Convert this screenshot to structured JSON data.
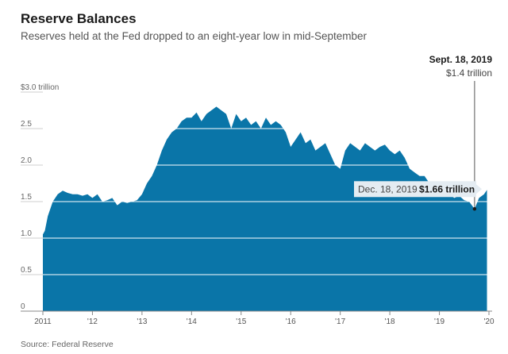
{
  "header": {
    "title": "Reserve Balances",
    "subtitle": "Reserves held at the Fed dropped to an eight-year low in mid-September"
  },
  "footer": {
    "source": "Source: Federal Reserve"
  },
  "colors": {
    "area": "#0a75a8",
    "grid": "#ffffff",
    "callout_bg": "#e4ecf2"
  },
  "chart_data": {
    "type": "area",
    "title": "Reserve Balances",
    "subtitle": "Reserves held at the Fed dropped to an eight-year low in mid-September",
    "ylabel": "",
    "xlabel": "",
    "ylim": [
      0,
      3.0
    ],
    "xlim": [
      2011.0,
      2020.0
    ],
    "yticks": [
      {
        "value": 0,
        "label": "0"
      },
      {
        "value": 0.5,
        "label": "0.5"
      },
      {
        "value": 1.0,
        "label": "1.0"
      },
      {
        "value": 1.5,
        "label": "1.5"
      },
      {
        "value": 2.0,
        "label": "2.0"
      },
      {
        "value": 2.5,
        "label": "2.5"
      },
      {
        "value": 3.0,
        "label": "$3.0 trillion"
      }
    ],
    "xticks": [
      {
        "value": 2011,
        "label": "2011"
      },
      {
        "value": 2012,
        "label": "'12"
      },
      {
        "value": 2013,
        "label": "'13"
      },
      {
        "value": 2014,
        "label": "'14"
      },
      {
        "value": 2015,
        "label": "'15"
      },
      {
        "value": 2016,
        "label": "'16"
      },
      {
        "value": 2017,
        "label": "'17"
      },
      {
        "value": 2018,
        "label": "'18"
      },
      {
        "value": 2019,
        "label": "'19"
      },
      {
        "value": 2020,
        "label": "'20"
      }
    ],
    "grid": true,
    "series": [
      {
        "x": [
          2011.0,
          2011.04,
          2011.1,
          2011.2,
          2011.3,
          2011.4,
          2011.5,
          2011.6,
          2011.7,
          2011.8,
          2011.9,
          2012.0,
          2012.1,
          2012.2,
          2012.3,
          2012.4,
          2012.5,
          2012.6,
          2012.7,
          2012.8,
          2012.9,
          2013.0,
          2013.1,
          2013.2,
          2013.3,
          2013.4,
          2013.5,
          2013.6,
          2013.7,
          2013.8,
          2013.9,
          2014.0,
          2014.1,
          2014.2,
          2014.3,
          2014.4,
          2014.5,
          2014.6,
          2014.7,
          2014.8,
          2014.9,
          2015.0,
          2015.1,
          2015.2,
          2015.3,
          2015.4,
          2015.5,
          2015.6,
          2015.7,
          2015.8,
          2015.9,
          2016.0,
          2016.1,
          2016.2,
          2016.3,
          2016.4,
          2016.5,
          2016.6,
          2016.7,
          2016.8,
          2016.9,
          2017.0,
          2017.1,
          2017.2,
          2017.3,
          2017.4,
          2017.5,
          2017.6,
          2017.7,
          2017.8,
          2017.9,
          2018.0,
          2018.1,
          2018.2,
          2018.3,
          2018.4,
          2018.5,
          2018.6,
          2018.7,
          2018.8,
          2018.9,
          2019.0,
          2019.1,
          2019.2,
          2019.3,
          2019.4,
          2019.5,
          2019.6,
          2019.71,
          2019.8,
          2019.9,
          2019.96
        ],
        "values": [
          1.05,
          1.1,
          1.3,
          1.5,
          1.6,
          1.65,
          1.62,
          1.6,
          1.6,
          1.58,
          1.6,
          1.55,
          1.6,
          1.5,
          1.52,
          1.55,
          1.45,
          1.5,
          1.48,
          1.5,
          1.52,
          1.6,
          1.75,
          1.85,
          2.0,
          2.2,
          2.35,
          2.45,
          2.5,
          2.6,
          2.65,
          2.65,
          2.72,
          2.6,
          2.7,
          2.75,
          2.8,
          2.75,
          2.7,
          2.5,
          2.7,
          2.6,
          2.65,
          2.55,
          2.6,
          2.5,
          2.65,
          2.55,
          2.6,
          2.55,
          2.45,
          2.25,
          2.35,
          2.45,
          2.3,
          2.35,
          2.2,
          2.25,
          2.3,
          2.15,
          2.0,
          1.95,
          2.2,
          2.3,
          2.25,
          2.2,
          2.3,
          2.25,
          2.2,
          2.25,
          2.28,
          2.2,
          2.15,
          2.2,
          2.1,
          1.95,
          1.9,
          1.85,
          1.85,
          1.75,
          1.7,
          1.65,
          1.6,
          1.6,
          1.55,
          1.58,
          1.52,
          1.5,
          1.4,
          1.55,
          1.6,
          1.66
        ]
      }
    ],
    "annotations": [
      {
        "id": "sept",
        "date": "Sept. 18, 2019",
        "value_label": "$1.4 trillion",
        "x": 2019.71,
        "y": 1.4
      },
      {
        "id": "dec",
        "date": "Dec. 18, 2019",
        "value_label": "$1.66 trillion",
        "x": 2019.96,
        "y": 1.66
      }
    ]
  }
}
